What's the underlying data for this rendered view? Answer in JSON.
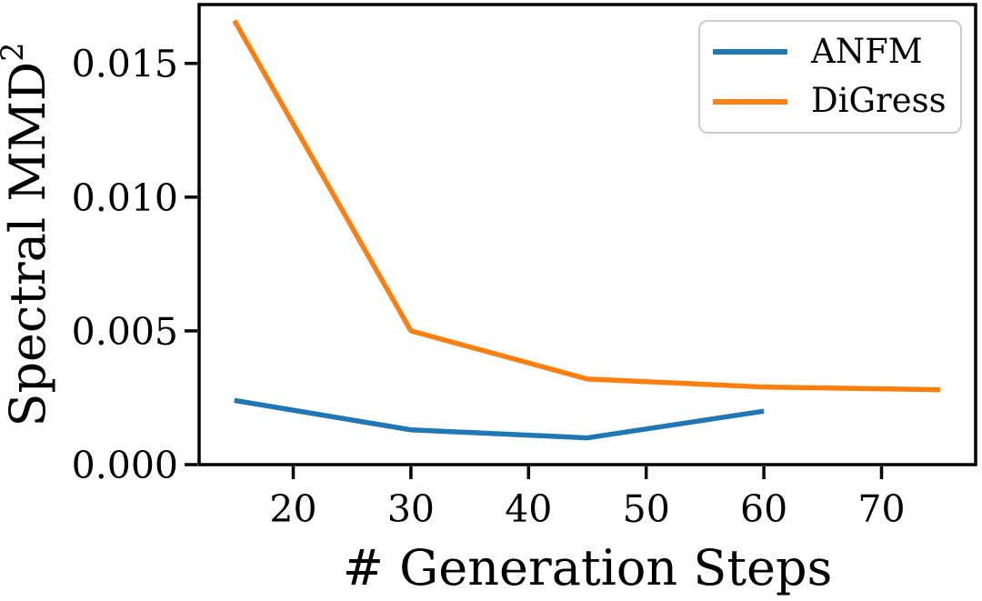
{
  "chart_data": {
    "type": "line",
    "title": "",
    "xlabel": "# Generation Steps",
    "ylabel": {
      "text": "Spectral MMD",
      "superscript": "2",
      "full": "Spectral MMD²"
    },
    "xlim": [
      12,
      78
    ],
    "ylim": [
      0,
      0.0172
    ],
    "grid": false,
    "x_ticks": {
      "values": [
        20,
        30,
        40,
        50,
        60,
        70
      ],
      "labels": [
        "20",
        "30",
        "40",
        "50",
        "60",
        "70"
      ]
    },
    "y_ticks": {
      "values": [
        0,
        0.005,
        0.01,
        0.015
      ],
      "labels": [
        "0.000",
        "0.005",
        "0.010",
        "0.015"
      ]
    },
    "legend": {
      "position": "upper right",
      "entries": [
        "ANFM",
        "DiGress"
      ]
    },
    "series": [
      {
        "name": "ANFM",
        "color": "#1f77b4",
        "x": [
          15,
          30,
          45,
          60
        ],
        "y": [
          0.0024,
          0.0013,
          0.001,
          0.002
        ]
      },
      {
        "name": "DiGress",
        "color": "#ff7f0e",
        "x": [
          15,
          30,
          45,
          60,
          75
        ],
        "y": [
          0.0166,
          0.005,
          0.0032,
          0.0029,
          0.0028
        ]
      }
    ],
    "axis_color": "#000000",
    "legend_border_color": "#cccccc",
    "background_color": "#ffffff"
  }
}
